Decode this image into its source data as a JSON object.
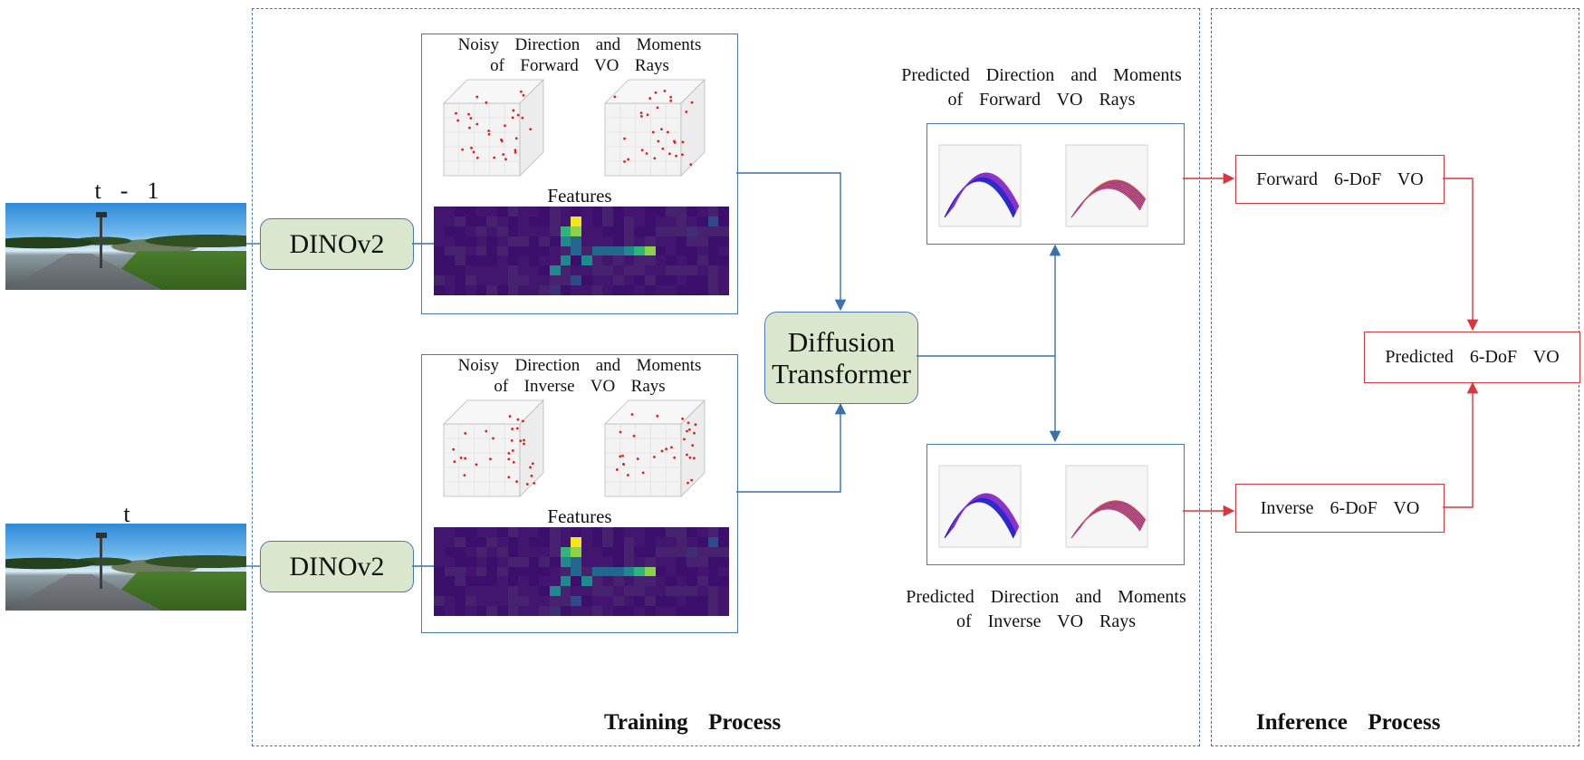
{
  "inputs": {
    "frame_prev_label": "t  -  1",
    "frame_curr_label": "t"
  },
  "encoder": {
    "top_label": "DINOv2",
    "bottom_label": "DINOv2"
  },
  "training": {
    "forward_rays_caption_line1": "Noisy  Direction  and  Moments",
    "forward_rays_caption_line2": "of  Forward  VO  Rays",
    "inverse_rays_caption_line1": "Noisy  Direction  and  Moments",
    "inverse_rays_caption_line2": "of  Inverse  VO  Rays",
    "features_label_top": "Features",
    "features_label_bottom": "Features",
    "diffusion_line1": "Diffusion",
    "diffusion_line2": "Transformer",
    "pred_forward_line1": "Predicted  Direction  and  Moments",
    "pred_forward_line2": "of  Forward  VO  Rays",
    "pred_inverse_line1": "Predicted  Direction  and  Moments",
    "pred_inverse_line2": "of  Inverse  VO  Rays",
    "section_title": "Training  Process"
  },
  "inference": {
    "forward_box": "Forward  6-DoF  VO",
    "inverse_box": "Inverse  6-DoF  VO",
    "predicted_box": "Predicted  6-DoF  VO",
    "section_title": "Inference  Process"
  },
  "colors": {
    "training_border": "#4a78b5",
    "inference_border": "#d9363e",
    "module_fill": "#dbe7cc",
    "arrow_blue": "#3a6fb0",
    "arrow_red": "#d9363e"
  }
}
